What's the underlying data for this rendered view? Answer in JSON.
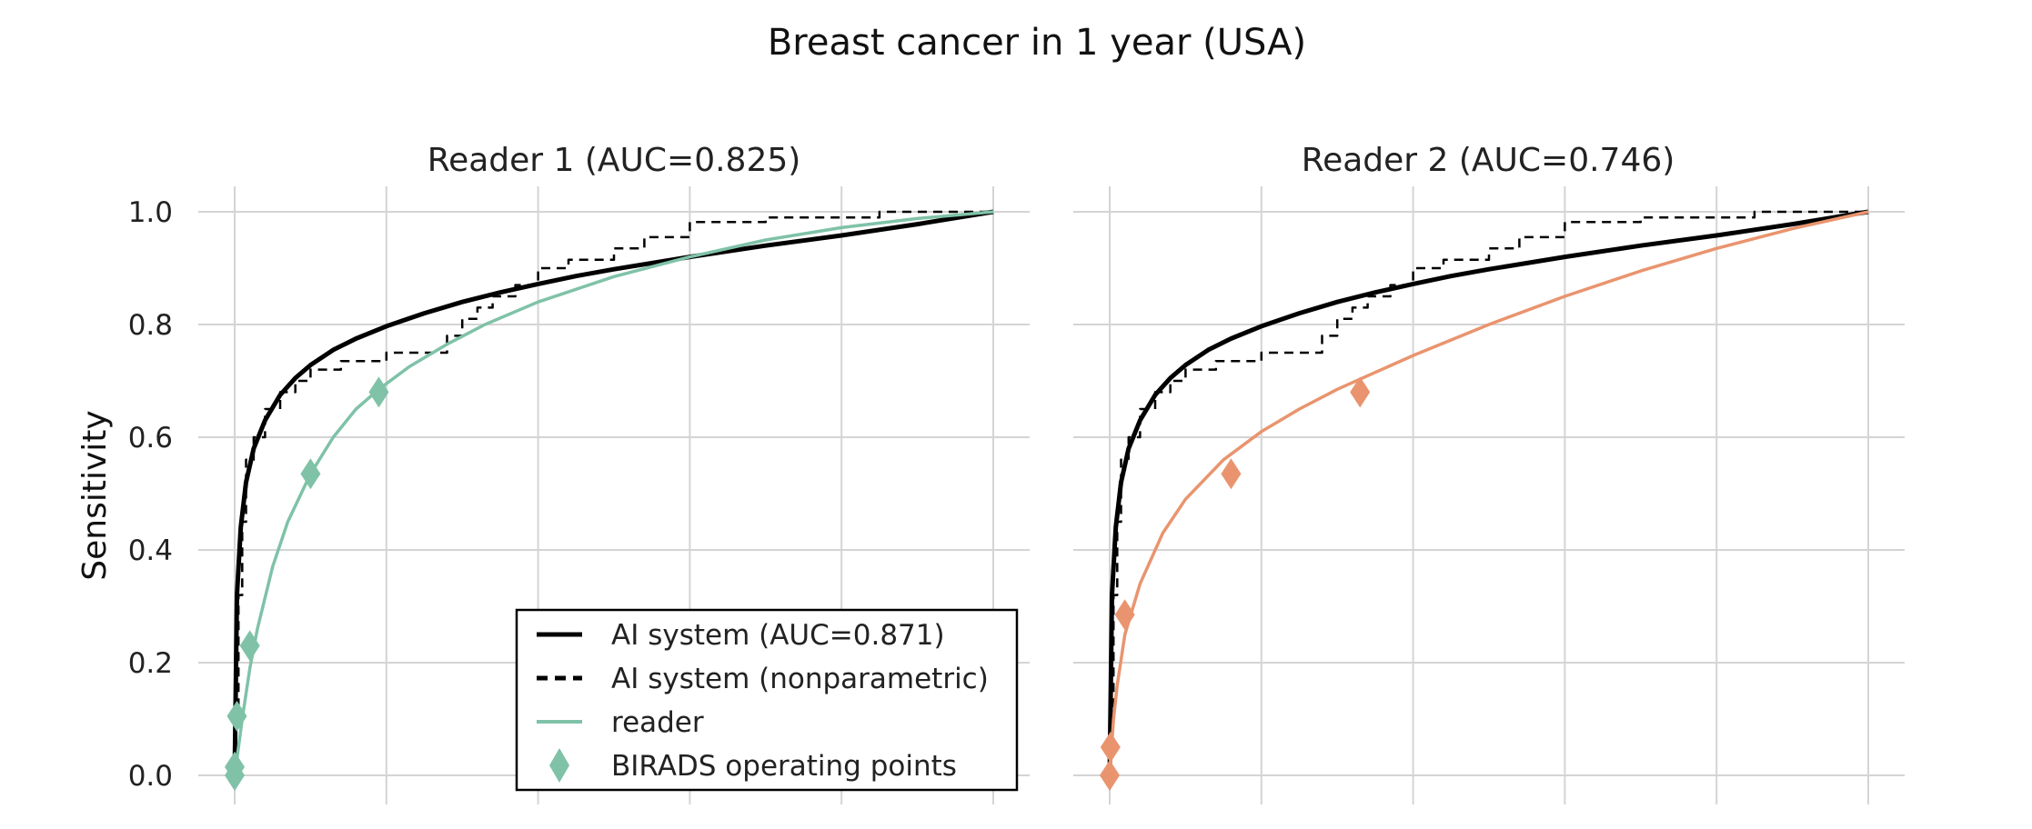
{
  "title": "Breast cancer in 1 year (USA)",
  "ylabel": "Sensitivity",
  "colors": {
    "ai": "#000000",
    "reader1": "#7fc2a8",
    "reader2": "#e9946e",
    "grid": "#d4d4d4"
  },
  "legend": {
    "placement": "bottom-right of left panel",
    "items": [
      {
        "key": "ai",
        "label": "AI system (AUC=0.871)"
      },
      {
        "key": "ai_np",
        "label": "AI system (nonparametric)"
      },
      {
        "key": "reader",
        "label": "reader"
      },
      {
        "key": "birads",
        "label": "BIRADS operating points"
      }
    ]
  },
  "chart_data": [
    {
      "type": "line",
      "title": "Reader 1 (AUC=0.825)",
      "xlabel": "",
      "ylabel": "Sensitivity",
      "xlim": [
        0,
        1
      ],
      "ylim": [
        0,
        1
      ],
      "y_ticks": [
        "0.0",
        "0.2",
        "0.4",
        "0.6",
        "0.8",
        "1.0"
      ],
      "grid": true,
      "series": [
        {
          "name": "AI system (AUC=0.871)",
          "style": "solid",
          "color": "#000000",
          "x": [
            0,
            0.003,
            0.008,
            0.015,
            0.025,
            0.04,
            0.06,
            0.08,
            0.1,
            0.13,
            0.16,
            0.2,
            0.25,
            0.3,
            0.35,
            0.4,
            0.45,
            0.5,
            0.6,
            0.7,
            0.8,
            0.9,
            1.0
          ],
          "y": [
            0,
            0.32,
            0.44,
            0.52,
            0.58,
            0.63,
            0.675,
            0.705,
            0.728,
            0.755,
            0.775,
            0.797,
            0.82,
            0.84,
            0.857,
            0.872,
            0.886,
            0.898,
            0.92,
            0.94,
            0.958,
            0.978,
            1.0
          ]
        },
        {
          "name": "AI system (nonparametric)",
          "style": "dashed",
          "color": "#000000",
          "x": [
            0,
            0.005,
            0.005,
            0.01,
            0.01,
            0.015,
            0.015,
            0.025,
            0.025,
            0.04,
            0.04,
            0.06,
            0.06,
            0.08,
            0.08,
            0.1,
            0.1,
            0.14,
            0.14,
            0.2,
            0.2,
            0.28,
            0.28,
            0.3,
            0.3,
            0.32,
            0.32,
            0.34,
            0.34,
            0.37,
            0.37,
            0.4,
            0.4,
            0.44,
            0.44,
            0.5,
            0.5,
            0.54,
            0.54,
            0.6,
            0.6,
            0.7,
            0.7,
            0.85,
            0.85,
            1.0
          ],
          "y": [
            0.1,
            0.1,
            0.32,
            0.32,
            0.45,
            0.45,
            0.56,
            0.56,
            0.6,
            0.6,
            0.65,
            0.65,
            0.68,
            0.68,
            0.7,
            0.7,
            0.72,
            0.72,
            0.735,
            0.735,
            0.75,
            0.75,
            0.78,
            0.78,
            0.81,
            0.81,
            0.83,
            0.83,
            0.85,
            0.85,
            0.87,
            0.87,
            0.9,
            0.9,
            0.915,
            0.915,
            0.935,
            0.935,
            0.955,
            0.955,
            0.982,
            0.982,
            0.99,
            0.99,
            1.0,
            1.0
          ]
        },
        {
          "name": "reader",
          "style": "solid",
          "color": "#7fc2a8",
          "x": [
            0,
            0.005,
            0.01,
            0.02,
            0.03,
            0.05,
            0.07,
            0.1,
            0.13,
            0.16,
            0.19,
            0.23,
            0.28,
            0.33,
            0.4,
            0.5,
            0.6,
            0.7,
            0.8,
            0.9,
            1.0
          ],
          "y": [
            0,
            0.05,
            0.1,
            0.19,
            0.26,
            0.37,
            0.45,
            0.535,
            0.6,
            0.65,
            0.685,
            0.725,
            0.765,
            0.8,
            0.84,
            0.885,
            0.92,
            0.95,
            0.972,
            0.988,
            1.0
          ]
        },
        {
          "name": "BIRADS operating points",
          "style": "diamond",
          "color": "#7fc2a8",
          "x": [
            0.0,
            0.0,
            0.003,
            0.02,
            0.1,
            0.19
          ],
          "y": [
            0.0,
            0.015,
            0.105,
            0.23,
            0.535,
            0.68
          ]
        }
      ]
    },
    {
      "type": "line",
      "title": "Reader 2 (AUC=0.746)",
      "xlabel": "",
      "ylabel": "",
      "xlim": [
        0,
        1
      ],
      "ylim": [
        0,
        1
      ],
      "grid": true,
      "series": [
        {
          "name": "AI system (AUC=0.871)",
          "style": "solid",
          "color": "#000000",
          "x": [
            0,
            0.003,
            0.008,
            0.015,
            0.025,
            0.04,
            0.06,
            0.08,
            0.1,
            0.13,
            0.16,
            0.2,
            0.25,
            0.3,
            0.35,
            0.4,
            0.45,
            0.5,
            0.6,
            0.7,
            0.8,
            0.9,
            1.0
          ],
          "y": [
            0,
            0.32,
            0.44,
            0.52,
            0.58,
            0.63,
            0.675,
            0.705,
            0.728,
            0.755,
            0.775,
            0.797,
            0.82,
            0.84,
            0.857,
            0.872,
            0.886,
            0.898,
            0.92,
            0.94,
            0.958,
            0.978,
            1.0
          ]
        },
        {
          "name": "AI system (nonparametric)",
          "style": "dashed",
          "color": "#000000",
          "x": [
            0,
            0.005,
            0.005,
            0.01,
            0.01,
            0.015,
            0.015,
            0.025,
            0.025,
            0.04,
            0.04,
            0.06,
            0.06,
            0.08,
            0.08,
            0.1,
            0.1,
            0.14,
            0.14,
            0.2,
            0.2,
            0.28,
            0.28,
            0.3,
            0.3,
            0.32,
            0.32,
            0.34,
            0.34,
            0.37,
            0.37,
            0.4,
            0.4,
            0.44,
            0.44,
            0.5,
            0.5,
            0.54,
            0.54,
            0.6,
            0.6,
            0.7,
            0.7,
            0.85,
            0.85,
            1.0
          ],
          "y": [
            0.1,
            0.1,
            0.32,
            0.32,
            0.45,
            0.45,
            0.56,
            0.56,
            0.6,
            0.6,
            0.65,
            0.65,
            0.68,
            0.68,
            0.7,
            0.7,
            0.72,
            0.72,
            0.735,
            0.735,
            0.75,
            0.75,
            0.78,
            0.78,
            0.81,
            0.81,
            0.83,
            0.83,
            0.85,
            0.85,
            0.87,
            0.87,
            0.9,
            0.9,
            0.915,
            0.915,
            0.935,
            0.935,
            0.955,
            0.955,
            0.982,
            0.982,
            0.99,
            0.99,
            1.0,
            1.0
          ]
        },
        {
          "name": "reader",
          "style": "solid",
          "color": "#e9946e",
          "x": [
            0,
            0.005,
            0.01,
            0.02,
            0.04,
            0.07,
            0.1,
            0.15,
            0.2,
            0.25,
            0.3,
            0.35,
            0.4,
            0.5,
            0.6,
            0.7,
            0.8,
            0.9,
            1.0
          ],
          "y": [
            0,
            0.1,
            0.16,
            0.25,
            0.34,
            0.43,
            0.49,
            0.56,
            0.61,
            0.65,
            0.685,
            0.715,
            0.745,
            0.8,
            0.85,
            0.895,
            0.935,
            0.97,
            1.0
          ]
        },
        {
          "name": "BIRADS operating points",
          "style": "diamond",
          "color": "#e9946e",
          "x": [
            0.0,
            0.001,
            0.02,
            0.16,
            0.33
          ],
          "y": [
            0.0,
            0.05,
            0.285,
            0.535,
            0.68
          ]
        }
      ]
    }
  ]
}
